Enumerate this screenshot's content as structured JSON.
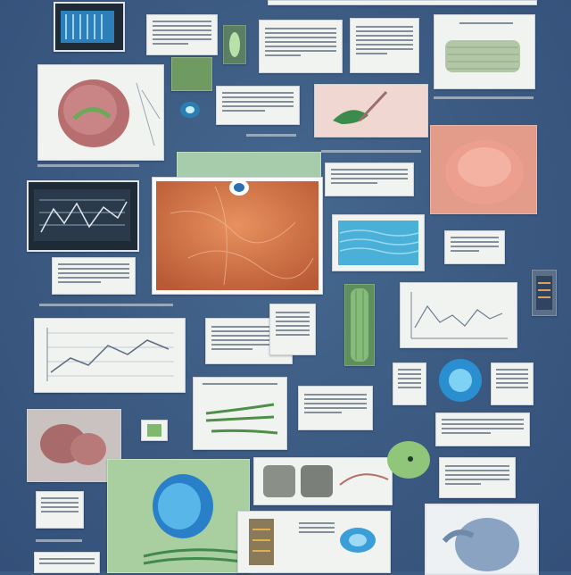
{
  "colors": {
    "background": "#3d5c85",
    "card": "#f1f3f1",
    "tissue_pink": "#d98a7f",
    "tissue_orange": "#d9704a",
    "leaf_green": "#9cc68f",
    "cell_blue": "#3aa0d8",
    "panel_green": "#a9cfa0"
  },
  "icons": [
    "tissue-sample-icon",
    "cell-icon",
    "leaf-icon",
    "chart-icon",
    "organ-icon",
    "microscope-slide-icon"
  ]
}
